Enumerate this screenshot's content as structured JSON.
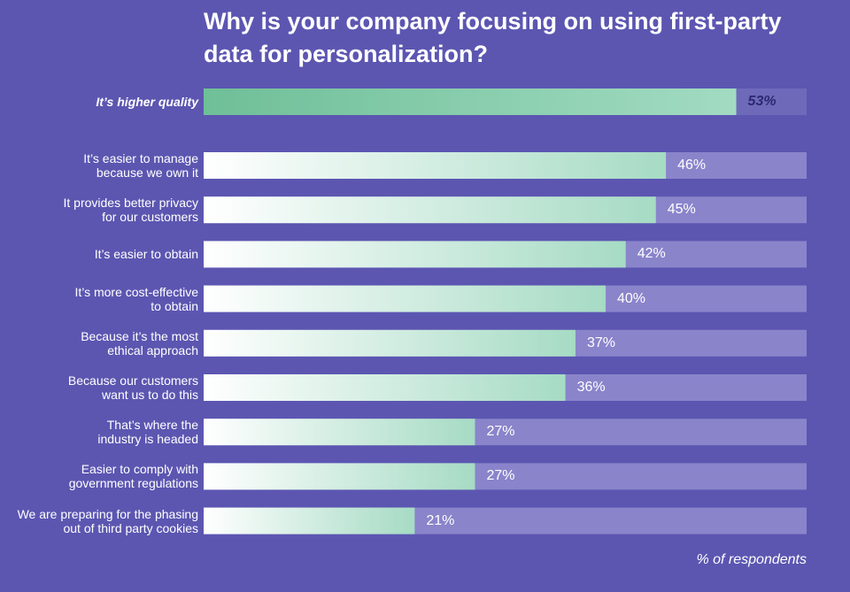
{
  "chart_data": {
    "type": "bar",
    "orientation": "horizontal",
    "title": "Why is your company focusing on using first-party data for personalization?",
    "categories": [
      "It’s higher quality",
      "It’s easier to manage\nbecause we own it",
      "It provides better privacy\nfor our customers",
      "It’s easier to obtain",
      "It’s more cost-effective\nto obtain",
      "Because it’s the most\nethical approach",
      "Because our customers\nwant us to do this",
      "That’s where the\nindustry is headed",
      "Easier to comply with\ngovernment regulations",
      "We are preparing for the phasing\nout of third party cookies"
    ],
    "values": [
      53,
      46,
      45,
      42,
      40,
      37,
      36,
      27,
      27,
      21
    ],
    "value_labels": [
      "53%",
      "46%",
      "45%",
      "42%",
      "40%",
      "37%",
      "36%",
      "27%",
      "27%",
      "21%"
    ],
    "xlim": [
      0,
      60
    ],
    "highlight_index": 0,
    "color": "#a6dbc4",
    "highlight_color": "#6fbf98",
    "axis_note": "% of respondents"
  }
}
